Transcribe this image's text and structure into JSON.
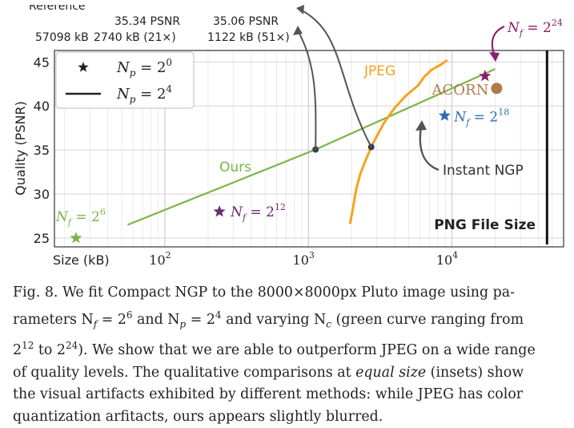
{
  "chart_data": {
    "type": "line",
    "title": "",
    "xlabel": "Size (kB)",
    "ylabel": "Quality (PSNR)",
    "xscale": "log",
    "xlim": [
      17,
      60000
    ],
    "ylim": [
      24,
      46.3
    ],
    "x_ticks": [
      100,
      1000,
      10000
    ],
    "x_tick_labels": [
      "10",
      "10",
      "10"
    ],
    "x_tick_exps": [
      "2",
      "3",
      "4"
    ],
    "y_ticks": [
      25,
      30,
      35,
      40,
      45
    ],
    "grid": true,
    "series": [
      {
        "name": "Ours",
        "color": "#7ab648",
        "x": [
          55,
          1122,
          20000
        ],
        "y": [
          26.5,
          35.06,
          44.2
        ]
      },
      {
        "name": "JPEG",
        "color": "#f7a21e",
        "x": [
          1950,
          2050,
          2150,
          2300,
          2500,
          2740,
          3000,
          3400,
          4000,
          4800,
          5800,
          6400,
          7200,
          8200,
          9300
        ],
        "y": [
          26.6,
          28.5,
          30.5,
          32.3,
          33.8,
          35.34,
          36.6,
          38.2,
          39.8,
          41.2,
          42.3,
          43.3,
          44.1,
          44.6,
          45.2
        ]
      }
    ],
    "points": [
      {
        "label_base": "N",
        "label_sub": "f",
        "label_pow": "6",
        "x": 24,
        "y": 25.0,
        "color": "#7ab648"
      },
      {
        "label_base": "N",
        "label_sub": "f",
        "label_pow": "12",
        "x": 240,
        "y": 28.0,
        "color": "#6b2a73"
      },
      {
        "label_base": "N",
        "label_sub": "f",
        "label_pow": "18",
        "x": 8900,
        "y": 38.9,
        "color": "#2f6db3"
      },
      {
        "label_base": "N",
        "label_sub": "f",
        "label_pow": "24",
        "x": 17000,
        "y": 43.4,
        "color": "#8a1f6b"
      },
      {
        "label_base": "ACORN",
        "x": 20500,
        "y": 42.0,
        "color": "#b07a4a"
      }
    ],
    "highlight_points": [
      {
        "x": 1122,
        "y": 35.06,
        "psnr": "35.06 PSNR",
        "size": "1122 kB (51×)"
      },
      {
        "x": 2740,
        "y": 35.34,
        "psnr": "35.34 PSNR",
        "size": "2740 kB (21×)"
      }
    ],
    "reference_size": "57098 kB",
    "reference_label": "Reference",
    "png_label": "PNG File Size",
    "png_x": 46000,
    "instant_ngp_label": "Instant NGP",
    "legend": {
      "position": "top-left",
      "entries": [
        {
          "marker": "star",
          "lhs": "N",
          "sub": "p",
          "eq": " = 2",
          "pow": "0"
        },
        {
          "marker": "line",
          "lhs": "N",
          "sub": "p",
          "eq": " = 2",
          "pow": "4"
        }
      ]
    }
  },
  "caption": {
    "prefix": "Fig. 8.",
    "text_1": " We fit Compact NGP to the 8000×8000px Pluto image using pa-",
    "text_2": "rameters N",
    "text_3": "2",
    "text_4": "12",
    "text_5": " to 2",
    "text_6": "24",
    "text_7": "). We show that we are able to outperform JPEG on a wide range",
    "text_8": "of quality levels. The qualitative comparisons at ",
    "text_9": "equal size",
    "text_10": " (insets) show",
    "text_11": "the visual artifacts exhibited by different methods: while JPEG has color",
    "text_12": "quantization arfitacts, ours appears slightly blurred.",
    "nf": "f",
    "eq1": " = 2",
    "pow1": "6",
    "and": " and N",
    "np": "p",
    "eq2": " = 2",
    "pow2": "4",
    "varying": " and varying N",
    "nc": "c",
    "green": " (green curve ranging from"
  }
}
